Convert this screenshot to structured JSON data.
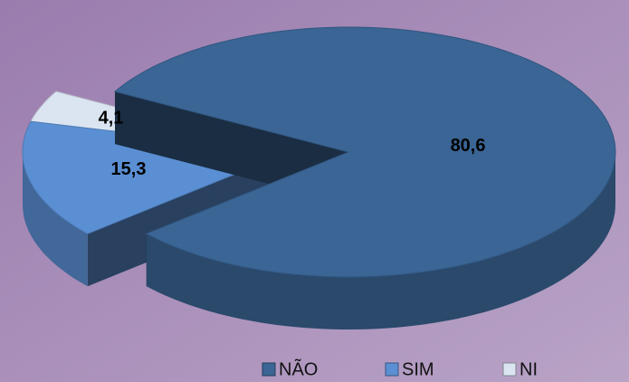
{
  "chart_data": {
    "type": "pie",
    "categories": [
      "NÃO",
      "SIM",
      "NI"
    ],
    "values": [
      80.6,
      15.3,
      4.1
    ],
    "value_labels": [
      "80,6",
      "15,3",
      "4,1"
    ],
    "colors": [
      "#3a6595",
      "#5b8fd4",
      "#dbe5f1"
    ],
    "legend": "bottom"
  }
}
